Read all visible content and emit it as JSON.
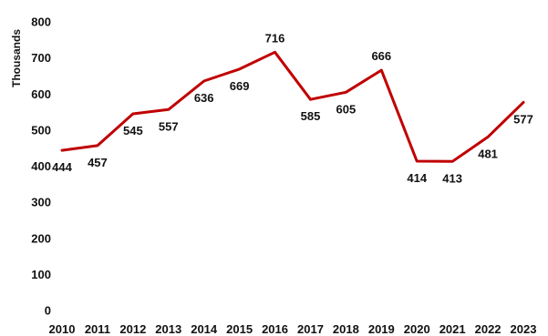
{
  "chart_data": {
    "type": "line",
    "x": [
      "2010",
      "2011",
      "2012",
      "2013",
      "2014",
      "2015",
      "2016",
      "2017",
      "2018",
      "2019",
      "2020",
      "2021",
      "2022",
      "2023"
    ],
    "series": [
      {
        "values": [
          444,
          457,
          545,
          557,
          636,
          669,
          716,
          585,
          605,
          666,
          414,
          413,
          481,
          577
        ]
      }
    ],
    "ylabel": "Thousands",
    "ylim": [
      0,
      800
    ],
    "yticks": [
      0,
      100,
      200,
      300,
      400,
      500,
      600,
      700,
      800
    ],
    "grid": false,
    "legend": "none",
    "line_color": "#C00000",
    "label_positions": [
      "below",
      "below",
      "below",
      "below",
      "below",
      "below",
      "above",
      "below",
      "below",
      "above",
      "below",
      "below",
      "below",
      "below"
    ]
  }
}
